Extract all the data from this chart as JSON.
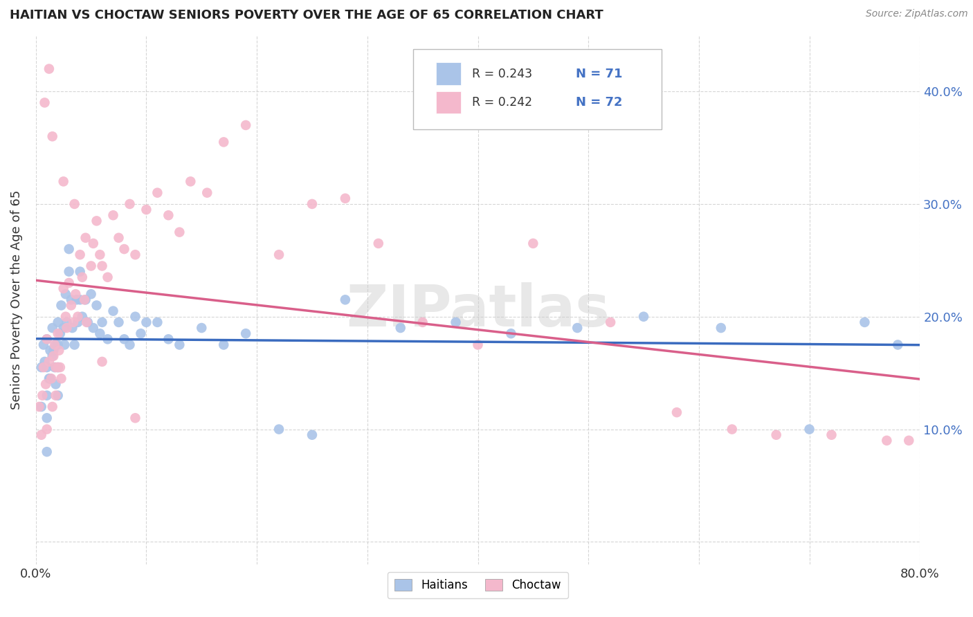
{
  "title": "HAITIAN VS CHOCTAW SENIORS POVERTY OVER THE AGE OF 65 CORRELATION CHART",
  "source": "Source: ZipAtlas.com",
  "ylabel": "Seniors Poverty Over the Age of 65",
  "xlim": [
    0,
    0.8
  ],
  "ylim": [
    -0.02,
    0.45
  ],
  "xticks": [
    0.0,
    0.1,
    0.2,
    0.3,
    0.4,
    0.5,
    0.6,
    0.7,
    0.8
  ],
  "xticklabels": [
    "0.0%",
    "",
    "",
    "",
    "",
    "",
    "",
    "",
    "80.0%"
  ],
  "yticks": [
    0.0,
    0.1,
    0.2,
    0.3,
    0.4
  ],
  "yticklabels_left": [
    "",
    "",
    "",
    "",
    ""
  ],
  "yticklabels_right": [
    "",
    "10.0%",
    "20.0%",
    "30.0%",
    "40.0%"
  ],
  "legend_r1": "R = 0.243",
  "legend_n1": "N = 71",
  "legend_r2": "R = 0.242",
  "legend_n2": "N = 72",
  "color_haitian": "#aac4e8",
  "color_choctaw": "#f4b8cc",
  "line_color_haitian": "#3a6bbf",
  "line_color_choctaw": "#d95f8a",
  "watermark": "ZIPatlas",
  "background_color": "#ffffff",
  "grid_color": "#cccccc",
  "haitian_x": [
    0.005,
    0.005,
    0.007,
    0.008,
    0.01,
    0.01,
    0.01,
    0.01,
    0.01,
    0.012,
    0.013,
    0.013,
    0.015,
    0.015,
    0.016,
    0.017,
    0.018,
    0.018,
    0.02,
    0.02,
    0.02,
    0.02,
    0.022,
    0.023,
    0.025,
    0.026,
    0.027,
    0.028,
    0.03,
    0.03,
    0.032,
    0.033,
    0.035,
    0.037,
    0.038,
    0.04,
    0.04,
    0.042,
    0.045,
    0.047,
    0.05,
    0.052,
    0.055,
    0.058,
    0.06,
    0.065,
    0.07,
    0.075,
    0.08,
    0.085,
    0.09,
    0.095,
    0.1,
    0.11,
    0.12,
    0.13,
    0.15,
    0.17,
    0.19,
    0.22,
    0.25,
    0.28,
    0.33,
    0.38,
    0.43,
    0.49,
    0.55,
    0.62,
    0.7,
    0.75,
    0.78
  ],
  "haitian_y": [
    0.155,
    0.12,
    0.175,
    0.16,
    0.18,
    0.155,
    0.13,
    0.11,
    0.08,
    0.145,
    0.17,
    0.145,
    0.19,
    0.165,
    0.17,
    0.155,
    0.175,
    0.14,
    0.195,
    0.175,
    0.155,
    0.13,
    0.185,
    0.21,
    0.19,
    0.175,
    0.22,
    0.195,
    0.26,
    0.24,
    0.215,
    0.19,
    0.175,
    0.215,
    0.195,
    0.24,
    0.215,
    0.2,
    0.215,
    0.195,
    0.22,
    0.19,
    0.21,
    0.185,
    0.195,
    0.18,
    0.205,
    0.195,
    0.18,
    0.175,
    0.2,
    0.185,
    0.195,
    0.195,
    0.18,
    0.175,
    0.19,
    0.175,
    0.185,
    0.1,
    0.095,
    0.215,
    0.19,
    0.195,
    0.185,
    0.19,
    0.2,
    0.19,
    0.1,
    0.195,
    0.175
  ],
  "choctaw_x": [
    0.003,
    0.005,
    0.006,
    0.007,
    0.009,
    0.01,
    0.01,
    0.012,
    0.014,
    0.015,
    0.016,
    0.017,
    0.018,
    0.018,
    0.02,
    0.02,
    0.021,
    0.022,
    0.023,
    0.025,
    0.027,
    0.028,
    0.03,
    0.032,
    0.034,
    0.036,
    0.038,
    0.04,
    0.042,
    0.044,
    0.046,
    0.05,
    0.052,
    0.055,
    0.058,
    0.06,
    0.065,
    0.07,
    0.075,
    0.08,
    0.085,
    0.09,
    0.1,
    0.11,
    0.12,
    0.13,
    0.14,
    0.155,
    0.17,
    0.19,
    0.22,
    0.25,
    0.28,
    0.31,
    0.35,
    0.4,
    0.45,
    0.52,
    0.58,
    0.63,
    0.67,
    0.72,
    0.77,
    0.79,
    0.008,
    0.012,
    0.015,
    0.025,
    0.035,
    0.045,
    0.06,
    0.09
  ],
  "choctaw_y": [
    0.12,
    0.095,
    0.13,
    0.155,
    0.14,
    0.18,
    0.1,
    0.16,
    0.145,
    0.12,
    0.165,
    0.175,
    0.155,
    0.13,
    0.155,
    0.185,
    0.17,
    0.155,
    0.145,
    0.225,
    0.2,
    0.19,
    0.23,
    0.21,
    0.195,
    0.22,
    0.2,
    0.255,
    0.235,
    0.215,
    0.195,
    0.245,
    0.265,
    0.285,
    0.255,
    0.245,
    0.235,
    0.29,
    0.27,
    0.26,
    0.3,
    0.255,
    0.295,
    0.31,
    0.29,
    0.275,
    0.32,
    0.31,
    0.355,
    0.37,
    0.255,
    0.3,
    0.305,
    0.265,
    0.195,
    0.175,
    0.265,
    0.195,
    0.115,
    0.1,
    0.095,
    0.095,
    0.09,
    0.09,
    0.39,
    0.42,
    0.36,
    0.32,
    0.3,
    0.27,
    0.16,
    0.11
  ]
}
